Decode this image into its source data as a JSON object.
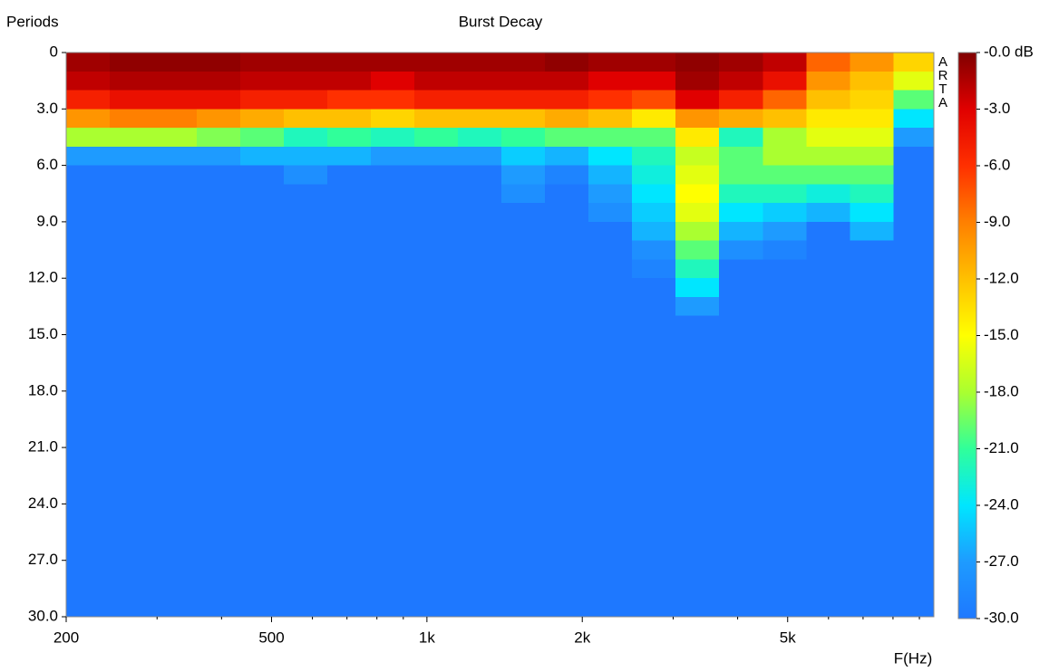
{
  "chart_data": {
    "type": "heatmap",
    "title": "Burst Decay",
    "ylabel": "Periods",
    "xlabel": "F(Hz)",
    "logo": "ARTA",
    "xscale": "log",
    "xlim": [
      200,
      9600
    ],
    "xticks": [
      200,
      500,
      {
        "value": 1000,
        "label": "1k"
      },
      {
        "value": 2000,
        "label": "2k"
      },
      {
        "value": 5000,
        "label": "5k"
      }
    ],
    "xminorticks": [
      300,
      400,
      600,
      700,
      800,
      900,
      3000,
      4000,
      6000,
      7000,
      8000,
      9000
    ],
    "ylim": [
      0,
      30
    ],
    "yticks": [
      0,
      {
        "value": 3,
        "label": "3.0"
      },
      {
        "value": 6,
        "label": "6.0"
      },
      {
        "value": 9,
        "label": "9.0"
      },
      {
        "value": 12,
        "label": "12.0"
      },
      {
        "value": 15,
        "label": "15.0"
      },
      {
        "value": 18,
        "label": "18.0"
      },
      {
        "value": 21,
        "label": "21.0"
      },
      {
        "value": 24,
        "label": "24.0"
      },
      {
        "value": 27,
        "label": "27.0"
      },
      {
        "value": 30,
        "label": "30.0"
      }
    ],
    "zlim": [
      -30,
      0
    ],
    "zticks": [
      {
        "value": 0,
        "label": "-0.0 dB"
      },
      {
        "value": -3,
        "label": "-3.0"
      },
      {
        "value": -6,
        "label": "-6.0"
      },
      {
        "value": -9,
        "label": "-9.0"
      },
      {
        "value": -12,
        "label": "-12.0"
      },
      {
        "value": -15,
        "label": "-15.0"
      },
      {
        "value": -18,
        "label": "-18.0"
      },
      {
        "value": -21,
        "label": "-21.0"
      },
      {
        "value": -24,
        "label": "-24.0"
      },
      {
        "value": -27,
        "label": "-27.0"
      },
      {
        "value": -30,
        "label": "-30.0"
      }
    ],
    "colormap": [
      "#1e78ff",
      "#1e9bff",
      "#00e6ff",
      "#30ff9a",
      "#aaff30",
      "#ffff00",
      "#ffc000",
      "#ff8000",
      "#ff3000",
      "#e00000",
      "#800000"
    ],
    "x_bins": [
      200,
      243,
      295,
      358,
      435,
      528,
      641,
      779,
      946,
      1149,
      1395,
      1694,
      2057,
      2498,
      3034,
      3684,
      4474,
      5433,
      6598,
      8012,
      9600
    ],
    "y_bins": [
      0,
      1,
      2,
      3,
      4,
      5,
      6,
      7,
      8,
      9,
      10,
      11,
      12,
      13,
      14,
      15,
      30
    ],
    "values": [
      [
        -1,
        -2,
        -5,
        -10,
        -18,
        -27,
        -30,
        -30,
        -30,
        -30,
        -30,
        -30,
        -30,
        -30,
        -30,
        -30
      ],
      [
        -0.5,
        -1.5,
        -4,
        -9,
        -18,
        -27,
        -30,
        -30,
        -30,
        -30,
        -30,
        -30,
        -30,
        -30,
        -30,
        -30
      ],
      [
        -0.5,
        -1.5,
        -4,
        -9,
        -18,
        -27,
        -30,
        -30,
        -30,
        -30,
        -30,
        -30,
        -30,
        -30,
        -30,
        -30
      ],
      [
        -0.5,
        -1.5,
        -4,
        -10,
        -19,
        -27,
        -30,
        -30,
        -30,
        -30,
        -30,
        -30,
        -30,
        -30,
        -30,
        -30
      ],
      [
        -1,
        -2,
        -5,
        -11,
        -20,
        -26,
        -30,
        -30,
        -30,
        -30,
        -30,
        -30,
        -30,
        -30,
        -30,
        -30
      ],
      [
        -1,
        -2,
        -5,
        -12,
        -22,
        -26,
        -28,
        -30,
        -30,
        -30,
        -30,
        -30,
        -30,
        -30,
        -30,
        -30
      ],
      [
        -1,
        -2,
        -6,
        -12,
        -21,
        -26,
        -30,
        -30,
        -30,
        -30,
        -30,
        -30,
        -30,
        -30,
        -30,
        -30
      ],
      [
        -1,
        -3,
        -6,
        -13,
        -22,
        -27,
        -30,
        -30,
        -30,
        -30,
        -30,
        -30,
        -30,
        -30,
        -30,
        -30
      ],
      [
        -1,
        -2,
        -5,
        -12,
        -21,
        -27,
        -30,
        -30,
        -30,
        -30,
        -30,
        -30,
        -30,
        -30,
        -30,
        -30
      ],
      [
        -1,
        -2,
        -5,
        -12,
        -22,
        -27,
        -30,
        -30,
        -30,
        -30,
        -30,
        -30,
        -30,
        -30,
        -30,
        -30
      ],
      [
        -1,
        -2,
        -5,
        -12,
        -21,
        -25,
        -27,
        -28,
        -30,
        -30,
        -30,
        -30,
        -30,
        -30,
        -30,
        -30
      ],
      [
        -0.5,
        -2,
        -5,
        -11,
        -20,
        -26,
        -29,
        -30,
        -30,
        -30,
        -30,
        -30,
        -30,
        -30,
        -30,
        -30
      ],
      [
        -1,
        -3,
        -6,
        -12,
        -20,
        -24,
        -26,
        -27,
        -28,
        -30,
        -30,
        -30,
        -30,
        -30,
        -30,
        -30
      ],
      [
        -1,
        -3,
        -7,
        -14,
        -20,
        -22,
        -23,
        -24,
        -25,
        -26,
        -28,
        -29,
        -30,
        -30,
        -30,
        -30
      ],
      [
        -0.5,
        -1,
        -3,
        -10,
        -14,
        -17,
        -16,
        -15,
        -16,
        -18,
        -20,
        -22,
        -24,
        -27,
        -30,
        -30
      ],
      [
        -1,
        -2,
        -5,
        -11,
        -22,
        -20,
        -20,
        -22,
        -24,
        -26,
        -28,
        -30,
        -30,
        -30,
        -30,
        -30
      ],
      [
        -2,
        -4,
        -8,
        -12,
        -18,
        -18,
        -20,
        -22,
        -25,
        -27,
        -29,
        -30,
        -30,
        -30,
        -30,
        -30
      ],
      [
        -8,
        -10,
        -12,
        -14,
        -16,
        -18,
        -20,
        -23,
        -26,
        -30,
        -30,
        -30,
        -30,
        -30,
        -30,
        -30
      ],
      [
        -10,
        -12,
        -13,
        -14,
        -16,
        -18,
        -20,
        -22,
        -24,
        -26,
        -30,
        -30,
        -30,
        -30,
        -30,
        -30
      ],
      [
        -13,
        -16,
        -20,
        -24,
        -27,
        -30,
        -30,
        -30,
        -30,
        -30,
        -30,
        -30,
        -30,
        -30,
        -30,
        -30
      ]
    ]
  }
}
